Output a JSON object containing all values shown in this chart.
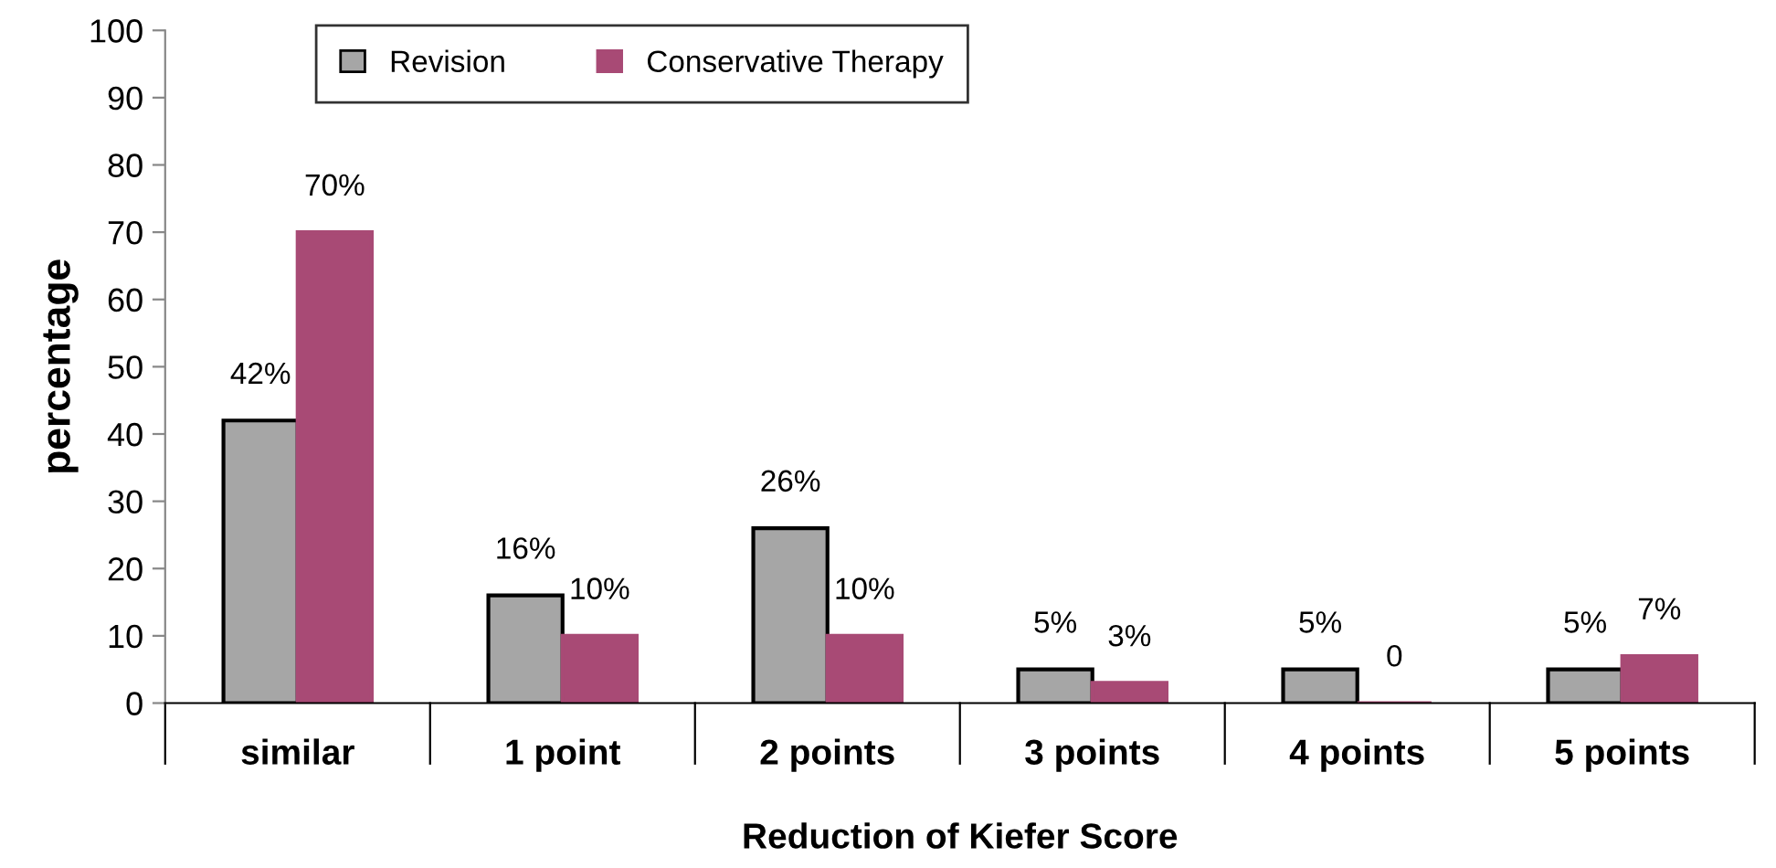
{
  "chart_data": {
    "type": "bar",
    "xlabel": "Reduction of Kiefer Score",
    "ylabel": "percentage",
    "categories": [
      "similar",
      "1 point",
      "2 points",
      "3 points",
      "4 points",
      "5 points"
    ],
    "series": [
      {
        "name": "Revision",
        "color": "#a6a6a6",
        "values": [
          42,
          16,
          26,
          5,
          5,
          5
        ],
        "value_labels": [
          "42%",
          "16%",
          "26%",
          "5%",
          "5%",
          "5%"
        ]
      },
      {
        "name": "Conservative Therapy",
        "color": "#a84a75",
        "values": [
          70,
          10,
          10,
          3,
          0,
          7
        ],
        "value_labels": [
          "70%",
          "10%",
          "10%",
          "3%",
          "0",
          "7%"
        ]
      }
    ],
    "ylim": [
      0,
      100
    ],
    "yticks": [
      0,
      10,
      20,
      30,
      40,
      50,
      60,
      70,
      80,
      90,
      100
    ],
    "grid": false,
    "legend": "top"
  }
}
